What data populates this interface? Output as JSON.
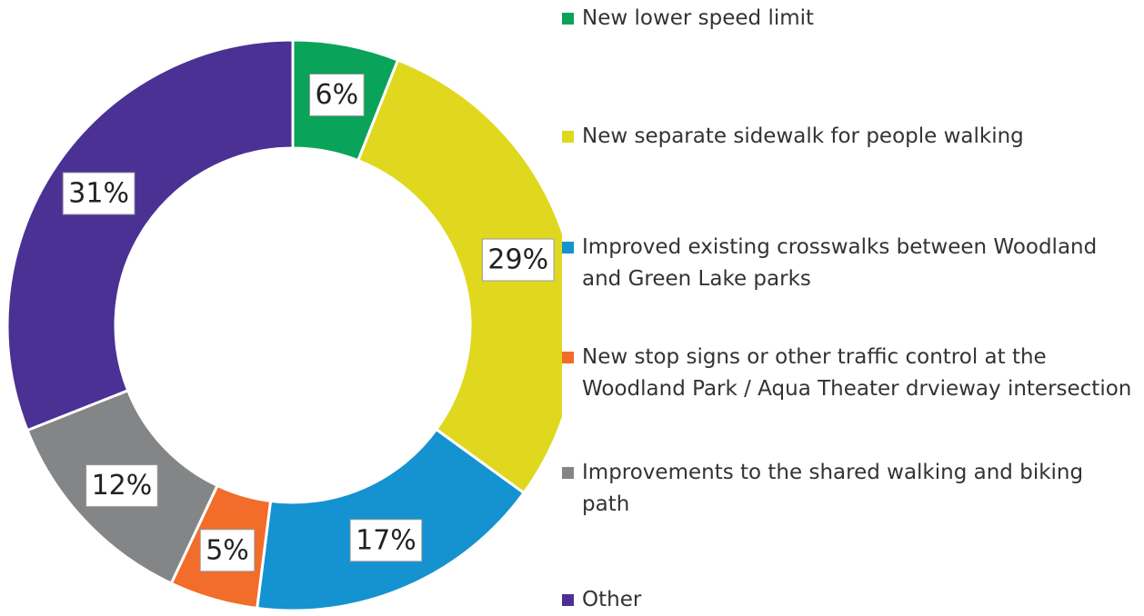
{
  "chart_data": {
    "type": "donut",
    "categories": [
      "New lower speed limit",
      "New separate sidewalk for people walking",
      "Improved existing crosswalks between Woodland and Green Lake parks",
      "New stop signs or other traffic control at the Woodland Park / Aqua Theater drvieway intersection",
      "Improvements to the shared walking and biking path",
      "Other"
    ],
    "values": [
      6,
      29,
      17,
      5,
      12,
      31
    ],
    "value_labels": [
      "6%",
      "29%",
      "17%",
      "5%",
      "12%",
      "31%"
    ],
    "colors": [
      "#0aa35a",
      "#e0d81e",
      "#1592d0",
      "#f26c2a",
      "#848587",
      "#4a3193"
    ],
    "legend": "right"
  }
}
